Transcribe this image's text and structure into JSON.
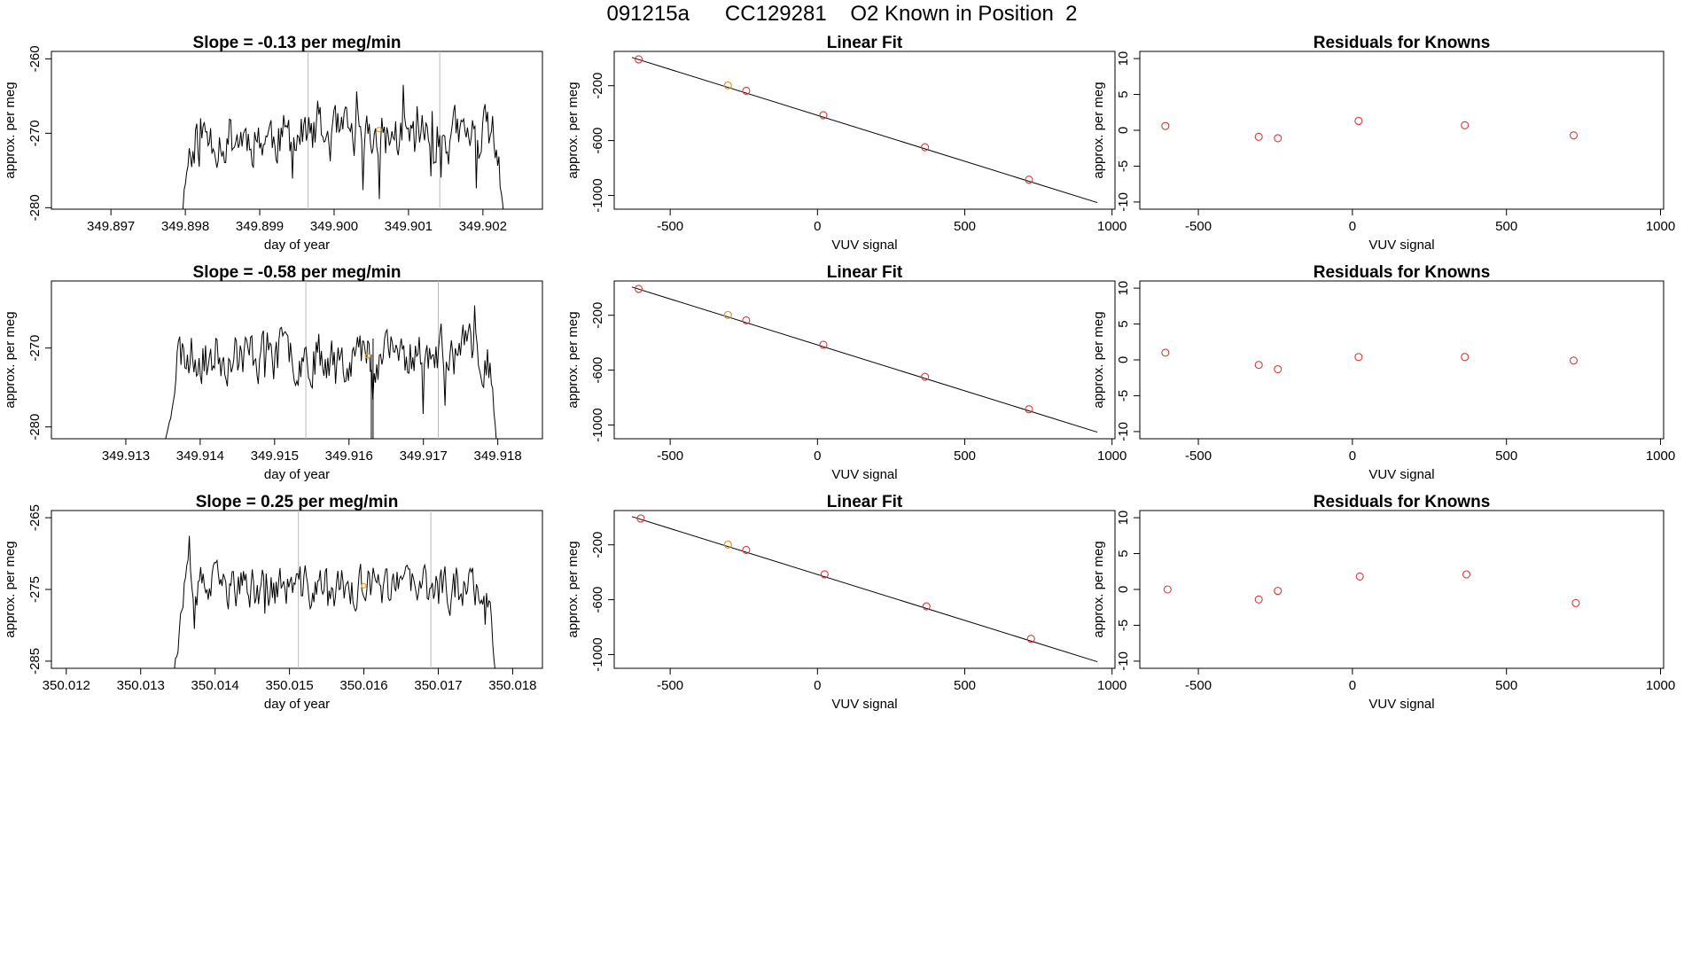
{
  "figure_title": "091215a      CC129281    O2 Known in Position  2",
  "chart_data": [
    {
      "id": "ts1",
      "type": "line",
      "title": "Slope =  -0.13  per meg/min",
      "xlabel": "day of year",
      "ylabel": "approx. per meg",
      "xlim": [
        349.8962,
        349.9028
      ],
      "ylim": [
        -280.2,
        -259
      ],
      "xticks": [
        "349.897",
        "349.898",
        "349.899",
        "349.900",
        "349.901",
        "349.902"
      ],
      "yticks": [
        "-260",
        "-270",
        "-280"
      ],
      "x_start": 349.8979,
      "x_end": 349.9023,
      "base": -284,
      "level": -270.5,
      "amp": 3.0,
      "rise": 0.00018,
      "fall": 0.00012,
      "vlines": [
        349.89965,
        349.90142
      ],
      "mean_x": 349.9006,
      "mean_y": -269.5,
      "seed": 11
    },
    {
      "id": "fit1",
      "type": "scatter",
      "title": "Linear Fit",
      "xlabel": "VUV signal",
      "ylabel": "approx. per meg",
      "xlim": [
        -690,
        1010
      ],
      "ylim": [
        -1100,
        50
      ],
      "xticks": [
        "-500",
        "0",
        "500",
        "1000"
      ],
      "yticks": [
        "-200",
        "-600",
        "-1000"
      ],
      "points_x": [
        -607,
        -304,
        -242,
        20,
        365,
        718
      ],
      "points_y": [
        -8,
        -198,
        -237,
        -415,
        -648,
        -885
      ],
      "highlight_index": 1,
      "fit_line": [
        [
          -630,
          6
        ],
        [
          950,
          -1052
        ]
      ]
    },
    {
      "id": "res1",
      "type": "scatter",
      "title": "Residuals for Knowns",
      "xlabel": "VUV signal",
      "ylabel": "approx. per meg",
      "xlim": [
        -690,
        1010
      ],
      "ylim": [
        -11,
        11
      ],
      "xticks": [
        "-500",
        "0",
        "500",
        "1000"
      ],
      "yticks": [
        "-10",
        "-5",
        "0",
        "5",
        "10"
      ],
      "points_x": [
        -607,
        -304,
        -242,
        20,
        365,
        718
      ],
      "points_y": [
        0.6,
        -0.9,
        -1.1,
        1.3,
        0.7,
        -0.7
      ]
    },
    {
      "id": "ts2",
      "type": "line",
      "title": "Slope =  -0.58  per meg/min",
      "xlabel": "day of year",
      "ylabel": "approx. per meg",
      "xlim": [
        349.912,
        349.9186
      ],
      "ylim": [
        -281.5,
        -261.5
      ],
      "xticks": [
        "349.913",
        "349.914",
        "349.915",
        "349.916",
        "349.917",
        "349.918"
      ],
      "yticks": [
        "-270",
        "-280"
      ],
      "x_start": 349.9135,
      "x_end": 349.918,
      "base": -284,
      "level": -270.8,
      "amp": 2.8,
      "rise": 0.0002,
      "fall": 0.00012,
      "vlines": [
        349.91542,
        349.9172
      ],
      "mean_x": 349.91625,
      "mean_y": -271,
      "seed": 23,
      "dip_x": 349.9163
    },
    {
      "id": "fit2",
      "type": "scatter",
      "title": "Linear Fit",
      "xlabel": "VUV signal",
      "ylabel": "approx. per meg",
      "xlim": [
        -690,
        1010
      ],
      "ylim": [
        -1100,
        50
      ],
      "xticks": [
        "-500",
        "0",
        "500",
        "1000"
      ],
      "yticks": [
        "-200",
        "-600",
        "-1000"
      ],
      "points_x": [
        -607,
        -304,
        -242,
        20,
        365,
        718
      ],
      "points_y": [
        -8,
        -198,
        -237,
        -415,
        -648,
        -885
      ],
      "highlight_index": 1,
      "fit_line": [
        [
          -630,
          6
        ],
        [
          950,
          -1052
        ]
      ]
    },
    {
      "id": "res2",
      "type": "scatter",
      "title": "Residuals for Knowns",
      "xlabel": "VUV signal",
      "ylabel": "approx. per meg",
      "xlim": [
        -690,
        1010
      ],
      "ylim": [
        -11,
        11
      ],
      "xticks": [
        "-500",
        "0",
        "500",
        "1000"
      ],
      "yticks": [
        "-10",
        "-5",
        "0",
        "5",
        "10"
      ],
      "points_x": [
        -607,
        -304,
        -242,
        20,
        365,
        718
      ],
      "points_y": [
        1.0,
        -0.7,
        -1.3,
        0.4,
        0.4,
        -0.1
      ]
    },
    {
      "id": "ts3",
      "type": "line",
      "title": "Slope =  0.25  per meg/min",
      "xlabel": "day of year",
      "ylabel": "approx. per meg",
      "xlim": [
        350.0118,
        350.0184
      ],
      "ylim": [
        -286,
        -264
      ],
      "xticks": [
        "350.012",
        "350.013",
        "350.014",
        "350.015",
        "350.016",
        "350.017",
        "350.018"
      ],
      "yticks": [
        "-265",
        "-275",
        "-285"
      ],
      "x_start": 350.0134,
      "x_end": 350.0178,
      "base": -290,
      "level": -274.8,
      "amp": 2.6,
      "rise": 0.0002,
      "fall": 0.00012,
      "vlines": [
        350.01512,
        350.0169
      ],
      "mean_x": 350.016,
      "mean_y": -274.5,
      "seed": 37
    },
    {
      "id": "fit3",
      "type": "scatter",
      "title": "Linear Fit",
      "xlabel": "VUV signal",
      "ylabel": "approx. per meg",
      "xlim": [
        -690,
        1010
      ],
      "ylim": [
        -1100,
        50
      ],
      "xticks": [
        "-500",
        "0",
        "500",
        "1000"
      ],
      "yticks": [
        "-200",
        "-600",
        "-1000"
      ],
      "points_x": [
        -600,
        -304,
        -242,
        24,
        370,
        725
      ],
      "points_y": [
        -8,
        -198,
        -237,
        -415,
        -648,
        -885
      ],
      "highlight_index": 1,
      "fit_line": [
        [
          -630,
          6
        ],
        [
          950,
          -1052
        ]
      ]
    },
    {
      "id": "res3",
      "type": "scatter",
      "title": "Residuals for Knowns",
      "xlabel": "VUV signal",
      "ylabel": "approx. per meg",
      "xlim": [
        -690,
        1010
      ],
      "ylim": [
        -11,
        11
      ],
      "xticks": [
        "-500",
        "0",
        "500",
        "1000"
      ],
      "yticks": [
        "-10",
        "-5",
        "0",
        "5",
        "10"
      ],
      "points_x": [
        -600,
        -304,
        -242,
        24,
        370,
        725
      ],
      "points_y": [
        0.0,
        -1.4,
        -0.2,
        1.8,
        2.1,
        -1.9
      ]
    }
  ]
}
